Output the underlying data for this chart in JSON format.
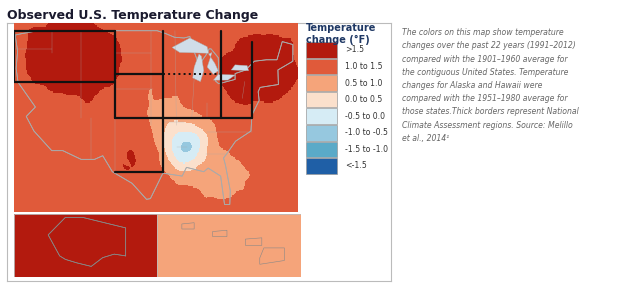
{
  "title": "Observed U.S. Temperature Change",
  "title_color": "#1a1a2e",
  "title_fontsize": 9.0,
  "title_fontweight": "bold",
  "legend_title": "Temperature\nchange (°F)",
  "legend_title_color": "#1f3864",
  "legend_title_fontsize": 7.0,
  "legend_entries": [
    ">1.5",
    "1.0 to 1.5",
    "0.5 to 1.0",
    "0.0 to 0.5",
    "-0.5 to 0.0",
    "-1.0 to -0.5",
    "-1.5 to -1.0",
    "<-1.5"
  ],
  "legend_colors": [
    "#b31a0e",
    "#e05a3a",
    "#f5a47a",
    "#fbe0cc",
    "#d6ecf5",
    "#96c8df",
    "#5aaac8",
    "#1f5fa6"
  ],
  "annotation_text": "The colors on this map show temperature\nchanges over the past 22 years (1991–2012)\ncompared with the 1901–1960 average for\nthe contiguous United States. Temperature\nchanges for Alaska and Hawaii were\ncompared with the 1951–1980 average for\nthose states.Thick borders represent National\nClimate Assessment regions. Source: Melillo\net al., 2014¹",
  "annotation_color": "#666666",
  "annotation_fontsize": 5.6,
  "background_color": "#ffffff",
  "panel_bg": "#ffffff",
  "ocean_color": "#e8e8e8",
  "map_border_color": "#bbbbbb",
  "state_border_color": "#aaaaaa",
  "region_border_color": "#111111"
}
